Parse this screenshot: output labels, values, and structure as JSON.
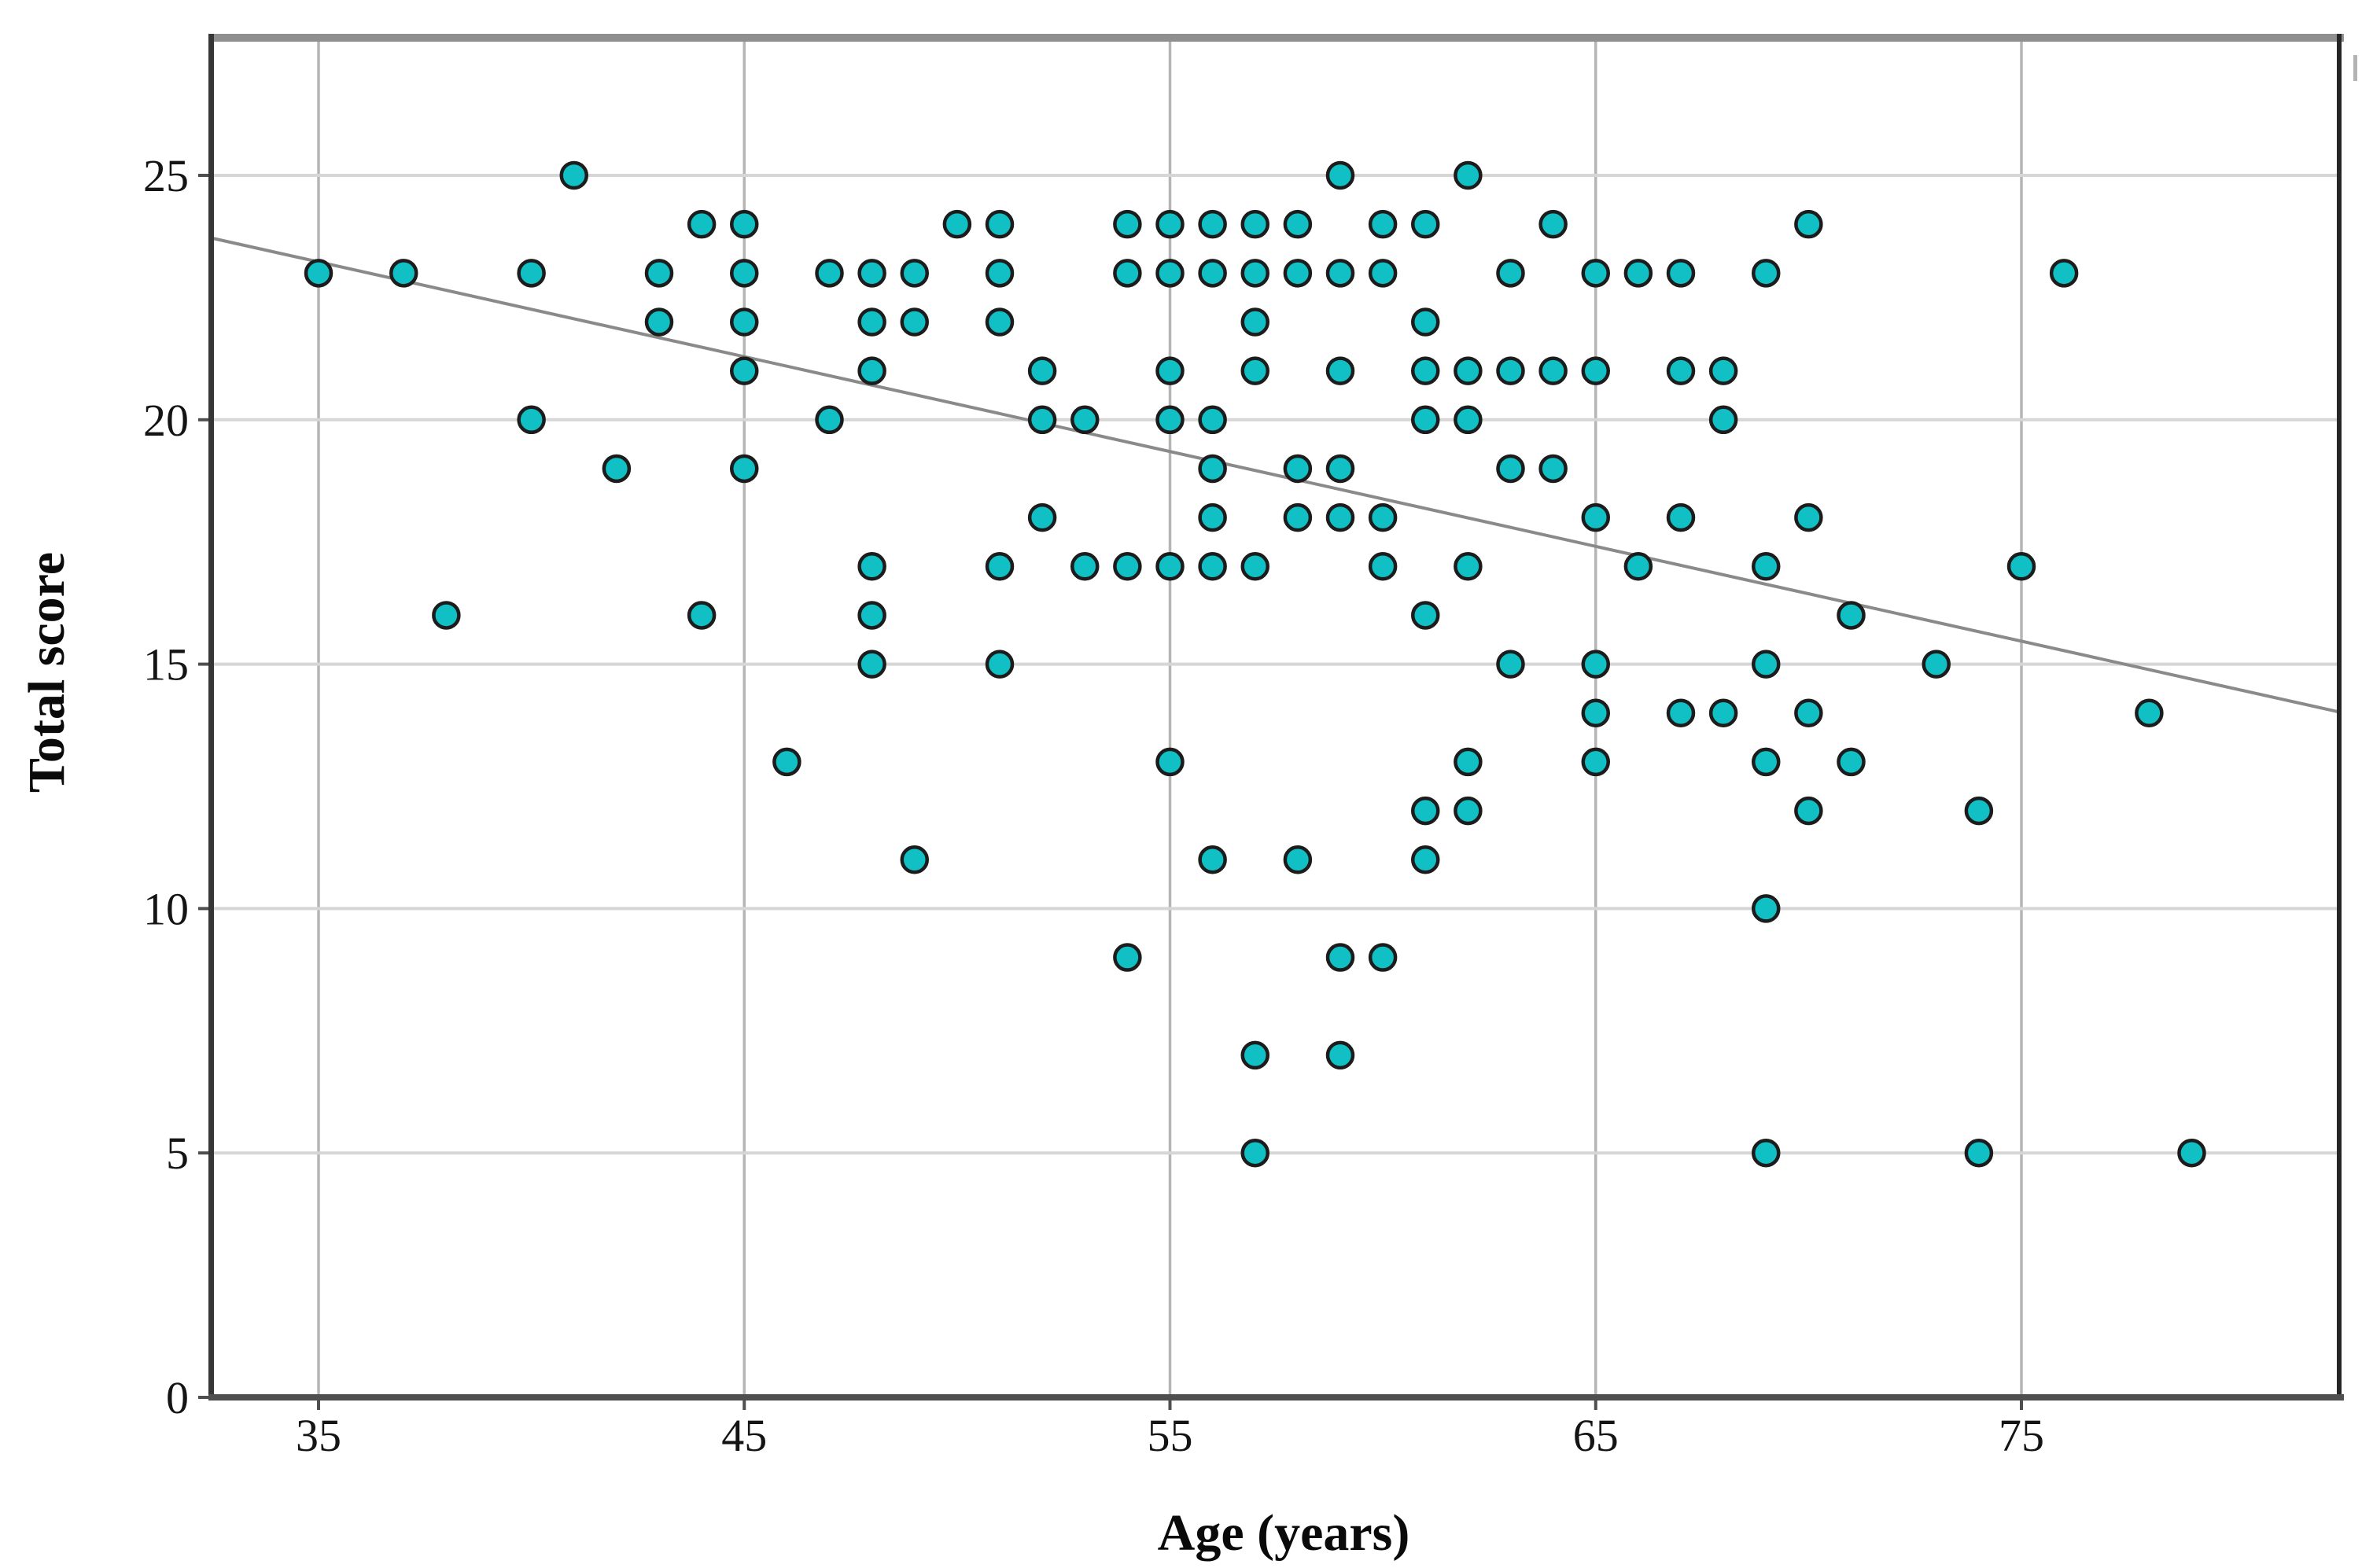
{
  "chart_data": {
    "type": "scatter",
    "title": "",
    "xlabel": "Age (years)",
    "ylabel": "Total score",
    "x_ticks": [
      35,
      45,
      55,
      65,
      75
    ],
    "y_ticks": [
      0,
      5,
      10,
      15,
      20,
      25
    ],
    "xlim": [
      32.5,
      82.5
    ],
    "ylim": [
      0,
      27.8
    ],
    "grid": true,
    "legend_position": "none",
    "marker": "circle",
    "points": [
      [
        41,
        25
      ],
      [
        59,
        25
      ],
      [
        62,
        25
      ],
      [
        44,
        24
      ],
      [
        45,
        24
      ],
      [
        50,
        24
      ],
      [
        51,
        24
      ],
      [
        54,
        24
      ],
      [
        55,
        24
      ],
      [
        56,
        24
      ],
      [
        57,
        24
      ],
      [
        58,
        24
      ],
      [
        60,
        24
      ],
      [
        61,
        24
      ],
      [
        64,
        24
      ],
      [
        70,
        24
      ],
      [
        35,
        23
      ],
      [
        37,
        23
      ],
      [
        40,
        23
      ],
      [
        43,
        23
      ],
      [
        45,
        23
      ],
      [
        47,
        23
      ],
      [
        48,
        23
      ],
      [
        49,
        23
      ],
      [
        51,
        23
      ],
      [
        54,
        23
      ],
      [
        55,
        23
      ],
      [
        56,
        23
      ],
      [
        57,
        23
      ],
      [
        58,
        23
      ],
      [
        59,
        23
      ],
      [
        60,
        23
      ],
      [
        63,
        23
      ],
      [
        65,
        23
      ],
      [
        66,
        23
      ],
      [
        67,
        23
      ],
      [
        69,
        23
      ],
      [
        76,
        23
      ],
      [
        43,
        22
      ],
      [
        45,
        22
      ],
      [
        48,
        22
      ],
      [
        49,
        22
      ],
      [
        51,
        22
      ],
      [
        57,
        22
      ],
      [
        61,
        22
      ],
      [
        45,
        21
      ],
      [
        48,
        21
      ],
      [
        52,
        21
      ],
      [
        55,
        21
      ],
      [
        57,
        21
      ],
      [
        59,
        21
      ],
      [
        61,
        21
      ],
      [
        62,
        21
      ],
      [
        63,
        21
      ],
      [
        64,
        21
      ],
      [
        65,
        21
      ],
      [
        67,
        21
      ],
      [
        68,
        21
      ],
      [
        40,
        20
      ],
      [
        47,
        20
      ],
      [
        52,
        20
      ],
      [
        53,
        20
      ],
      [
        55,
        20
      ],
      [
        56,
        20
      ],
      [
        61,
        20
      ],
      [
        62,
        20
      ],
      [
        68,
        20
      ],
      [
        42,
        19
      ],
      [
        45,
        19
      ],
      [
        56,
        19
      ],
      [
        58,
        19
      ],
      [
        59,
        19
      ],
      [
        63,
        19
      ],
      [
        64,
        19
      ],
      [
        52,
        18
      ],
      [
        56,
        18
      ],
      [
        58,
        18
      ],
      [
        59,
        18
      ],
      [
        60,
        18
      ],
      [
        65,
        18
      ],
      [
        67,
        18
      ],
      [
        70,
        18
      ],
      [
        48,
        17
      ],
      [
        51,
        17
      ],
      [
        53,
        17
      ],
      [
        54,
        17
      ],
      [
        55,
        17
      ],
      [
        56,
        17
      ],
      [
        57,
        17
      ],
      [
        60,
        17
      ],
      [
        62,
        17
      ],
      [
        66,
        17
      ],
      [
        69,
        17
      ],
      [
        75,
        17
      ],
      [
        38,
        16
      ],
      [
        44,
        16
      ],
      [
        48,
        16
      ],
      [
        61,
        16
      ],
      [
        71,
        16
      ],
      [
        48,
        15
      ],
      [
        51,
        15
      ],
      [
        63,
        15
      ],
      [
        65,
        15
      ],
      [
        69,
        15
      ],
      [
        73,
        15
      ],
      [
        65,
        14
      ],
      [
        67,
        14
      ],
      [
        68,
        14
      ],
      [
        70,
        14
      ],
      [
        78,
        14
      ],
      [
        46,
        13
      ],
      [
        55,
        13
      ],
      [
        62,
        13
      ],
      [
        65,
        13
      ],
      [
        69,
        13
      ],
      [
        71,
        13
      ],
      [
        61,
        12
      ],
      [
        62,
        12
      ],
      [
        70,
        12
      ],
      [
        74,
        12
      ],
      [
        49,
        11
      ],
      [
        56,
        11
      ],
      [
        58,
        11
      ],
      [
        61,
        11
      ],
      [
        69,
        10
      ],
      [
        54,
        9
      ],
      [
        59,
        9
      ],
      [
        60,
        9
      ],
      [
        57,
        7
      ],
      [
        59,
        7
      ],
      [
        57,
        5
      ],
      [
        69,
        5
      ],
      [
        74,
        5
      ],
      [
        79,
        5
      ]
    ],
    "trend_line": {
      "slope": -0.194,
      "intercept": 30.02
    }
  },
  "colors": {
    "dot_fill": "#10c0c4",
    "dot_stroke": "#1c1c1c",
    "trend": "#8a8a8a",
    "grid_h": "#d6d6d6",
    "grid_v": "#b5b5b5",
    "border_top": "#8f8f8f",
    "border_left": "#363636",
    "border_right": "#262626",
    "border_bottom": "#4f4f4f",
    "tick_text": "#141414",
    "stray_mark": "#b3b3b3"
  }
}
